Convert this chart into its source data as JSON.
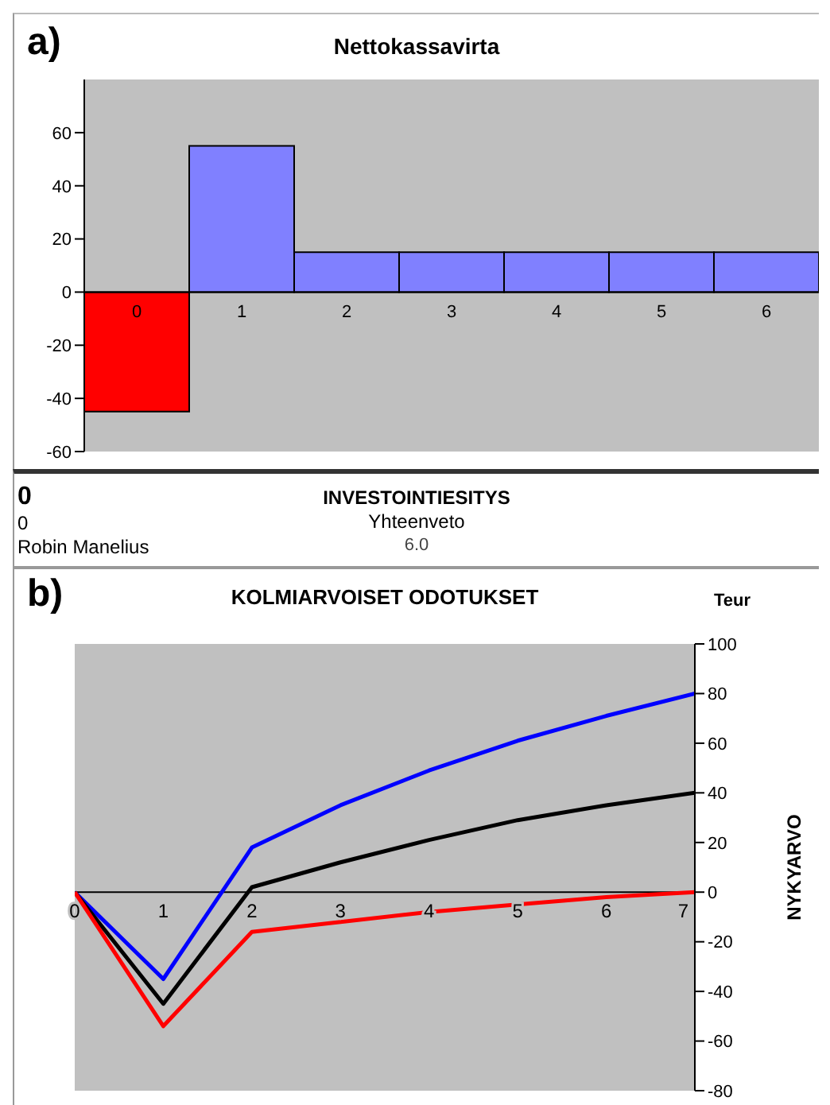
{
  "chart_data": [
    {
      "type": "bar",
      "title": "Nettokassavirta",
      "annotations": [
        "a)"
      ],
      "categories": [
        "0",
        "1",
        "2",
        "3",
        "4",
        "5",
        "6"
      ],
      "values": [
        -45,
        55,
        15,
        15,
        15,
        15,
        15
      ],
      "colors": [
        "#ff0000",
        "#8080ff",
        "#8080ff",
        "#8080ff",
        "#8080ff",
        "#8080ff",
        "#8080ff"
      ],
      "ylim": [
        -60,
        80
      ],
      "yticks": [
        -60,
        -40,
        -20,
        0,
        20,
        40,
        60
      ],
      "grid": false
    },
    {
      "type": "other",
      "title": "INVESTOINTIESITYS",
      "annotations": [
        "0",
        "0",
        "Robin Manelius",
        "Yhteenveto",
        "6.0"
      ]
    },
    {
      "type": "line",
      "title": "KOLMIARVOISET ODOTUKSET",
      "ylabel": "NYKYARVO",
      "annotations": [
        "b)",
        "Teur"
      ],
      "x": [
        0,
        1,
        2,
        3,
        4,
        5,
        6,
        7
      ],
      "series": [
        {
          "color": "#0000ff",
          "values": [
            0,
            -35,
            18,
            35,
            49,
            61,
            71,
            80
          ]
        },
        {
          "color": "#000000",
          "values": [
            0,
            -45,
            2,
            12,
            21,
            29,
            35,
            40
          ]
        },
        {
          "color": "#ff0000",
          "values": [
            0,
            -54,
            -16,
            -12,
            -8,
            -5,
            -2,
            0
          ]
        }
      ],
      "xlim": [
        0,
        7
      ],
      "xticks": [
        0,
        1,
        2,
        3,
        4,
        5,
        6,
        7
      ],
      "ylim": [
        -80,
        100
      ],
      "yticks": [
        -80,
        -60,
        -40,
        -20,
        0,
        20,
        40,
        60,
        80,
        100
      ],
      "grid": false,
      "marker": "none",
      "line_style": "solid"
    }
  ]
}
